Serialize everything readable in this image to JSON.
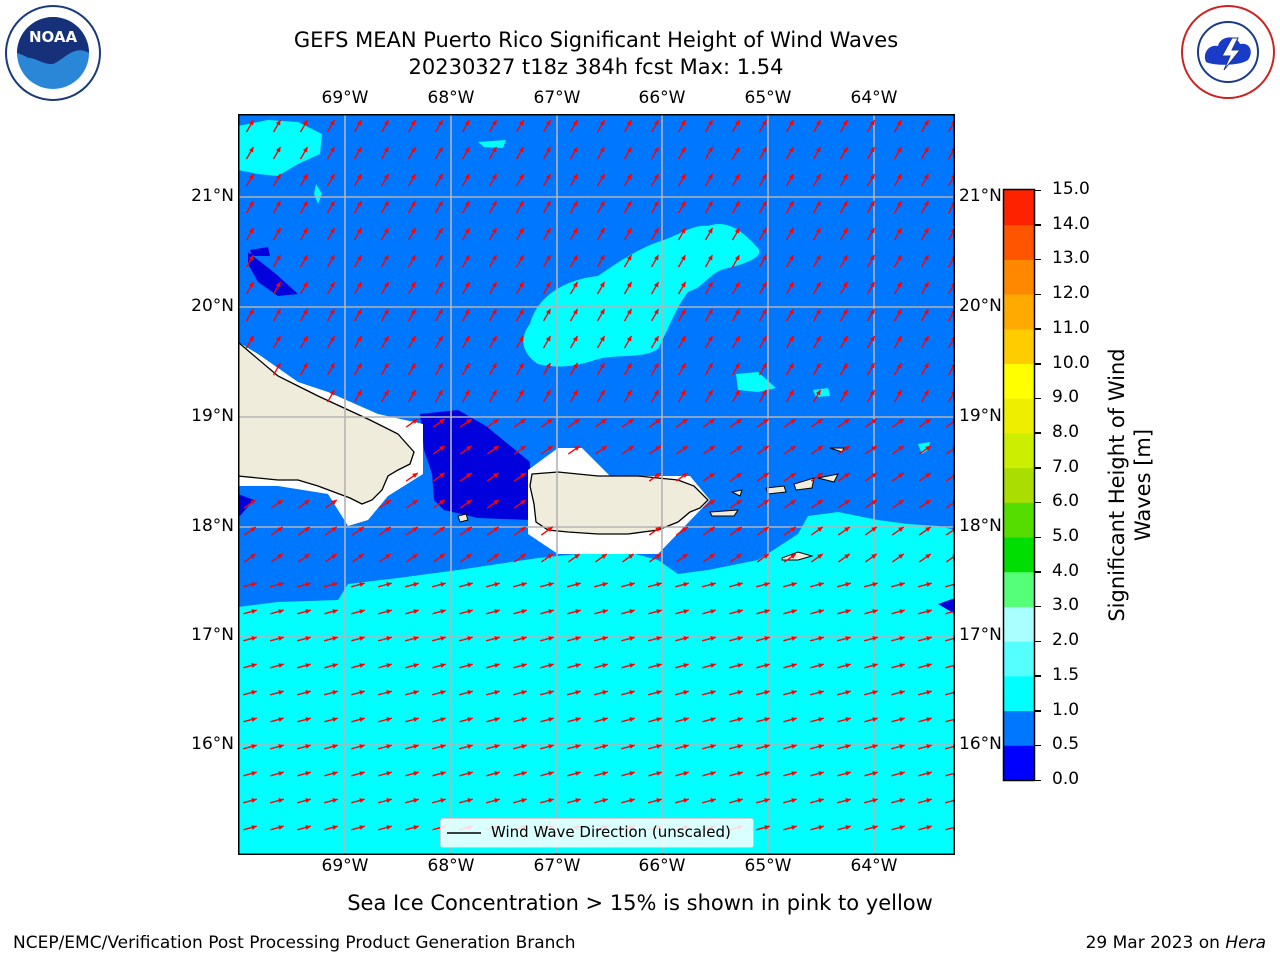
{
  "title": {
    "line1": "GEFS MEAN Puerto Rico Significant Height of Wind Waves",
    "line2": "20230327 t18z 384h fcst   Max: 1.54"
  },
  "logos": {
    "left": {
      "text": "NOAA",
      "ring_text": "NATIONAL OCEANIC AND ATMOSPHERIC ADMINISTRATION · U.S. DEPARTMENT OF COMMERCE"
    },
    "right": {
      "ring_text": "NATIONAL WEATHER SERVICE"
    }
  },
  "axes": {
    "lon_labels": [
      "69°W",
      "68°W",
      "67°W",
      "66°W",
      "65°W",
      "64°W"
    ],
    "lat_labels": [
      "21°N",
      "20°N",
      "19°N",
      "18°N",
      "17°N",
      "16°N"
    ]
  },
  "colorbar": {
    "label": "Significant Height of Wind Waves [m]",
    "ticks": [
      "0.0",
      "0.5",
      "1.0",
      "1.5",
      "2.0",
      "3.0",
      "4.0",
      "5.0",
      "6.0",
      "7.0",
      "8.0",
      "9.0",
      "10.0",
      "11.0",
      "12.0",
      "13.0",
      "14.0",
      "15.0"
    ],
    "colors": [
      "#0000ff",
      "#0077ff",
      "#00ffff",
      "#55ffff",
      "#aaffff",
      "#55ff77",
      "#00dd00",
      "#55dd00",
      "#aadd00",
      "#ccee00",
      "#eeee00",
      "#ffff00",
      "#ffcc00",
      "#ffaa00",
      "#ff8800",
      "#ff5500",
      "#ff2200"
    ]
  },
  "legend": {
    "label": "Wind Wave Direction (unscaled)"
  },
  "note": "Sea Ice Concentration > 15% is shown in pink to yellow",
  "footer": {
    "left": "NCEP/EMC/Verification Post Processing Product Generation Branch",
    "right_date": "29 Mar 2023 on",
    "right_host": "Hera"
  },
  "colors": {
    "ocean_mid": "#0077ff",
    "ocean_low": "#0000dd",
    "ocean_high": "#00ffff",
    "land": "#efecdc",
    "arrow": "#ff0000"
  }
}
